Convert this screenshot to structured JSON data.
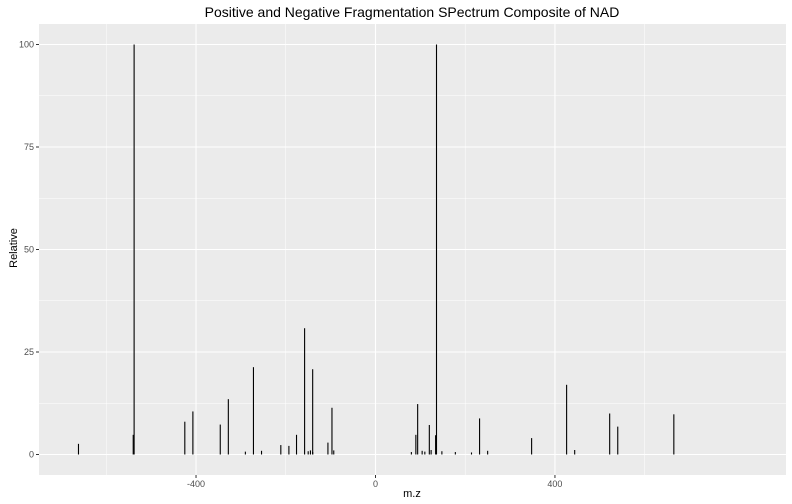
{
  "chart_data": {
    "type": "bar",
    "title": "Positive and Negative Fragmentation SPectrum Composite of NAD",
    "xlabel": "m.z",
    "ylabel": "Relative",
    "xlim": [
      -750,
      915
    ],
    "ylim": [
      -5,
      105
    ],
    "x_ticks": [
      -400,
      0,
      400
    ],
    "y_ticks": [
      0,
      25,
      50,
      75,
      100
    ],
    "x_tick_labels": [
      "-400",
      "0",
      "400"
    ],
    "y_tick_labels": [
      "0",
      "25",
      "50",
      "75",
      "100"
    ],
    "grid": true,
    "colors": {
      "panel": "#EBEBEB",
      "grid_major": "#FFFFFF",
      "bar": "#000000",
      "tick": "#333333"
    },
    "points": [
      {
        "x": -662,
        "y": 2.6
      },
      {
        "x": -540,
        "y": 4.8
      },
      {
        "x": -538,
        "y": 100
      },
      {
        "x": -425,
        "y": 8
      },
      {
        "x": -407,
        "y": 10.5
      },
      {
        "x": -346,
        "y": 7.3
      },
      {
        "x": -328,
        "y": 13.5
      },
      {
        "x": -290,
        "y": 0.7
      },
      {
        "x": -272,
        "y": 21.3
      },
      {
        "x": -254,
        "y": 0.9
      },
      {
        "x": -211,
        "y": 2.3
      },
      {
        "x": -193,
        "y": 2.1
      },
      {
        "x": -176,
        "y": 4.8
      },
      {
        "x": -158,
        "y": 30.8
      },
      {
        "x": -150,
        "y": 0.8
      },
      {
        "x": -145,
        "y": 1.0
      },
      {
        "x": -140,
        "y": 20.8
      },
      {
        "x": -140,
        "y": 0.6
      },
      {
        "x": -106,
        "y": 2.9
      },
      {
        "x": -97,
        "y": 11.4
      },
      {
        "x": -93,
        "y": 1.0
      },
      {
        "x": 80,
        "y": 0.6
      },
      {
        "x": 90,
        "y": 4.8
      },
      {
        "x": 94,
        "y": 12.3
      },
      {
        "x": 104,
        "y": 0.9
      },
      {
        "x": 110,
        "y": 0.7
      },
      {
        "x": 120,
        "y": 7.2
      },
      {
        "x": 124,
        "y": 1.1
      },
      {
        "x": 134,
        "y": 4.7
      },
      {
        "x": 136,
        "y": 100
      },
      {
        "x": 148,
        "y": 0.8
      },
      {
        "x": 178,
        "y": 0.6
      },
      {
        "x": 214,
        "y": 0.5
      },
      {
        "x": 232,
        "y": 8.8
      },
      {
        "x": 250,
        "y": 0.9
      },
      {
        "x": 348,
        "y": 4.0
      },
      {
        "x": 426,
        "y": 17.0
      },
      {
        "x": 444,
        "y": 1.1
      },
      {
        "x": 522,
        "y": 10.0
      },
      {
        "x": 540,
        "y": 6.8
      },
      {
        "x": 665,
        "y": 9.8
      }
    ]
  }
}
